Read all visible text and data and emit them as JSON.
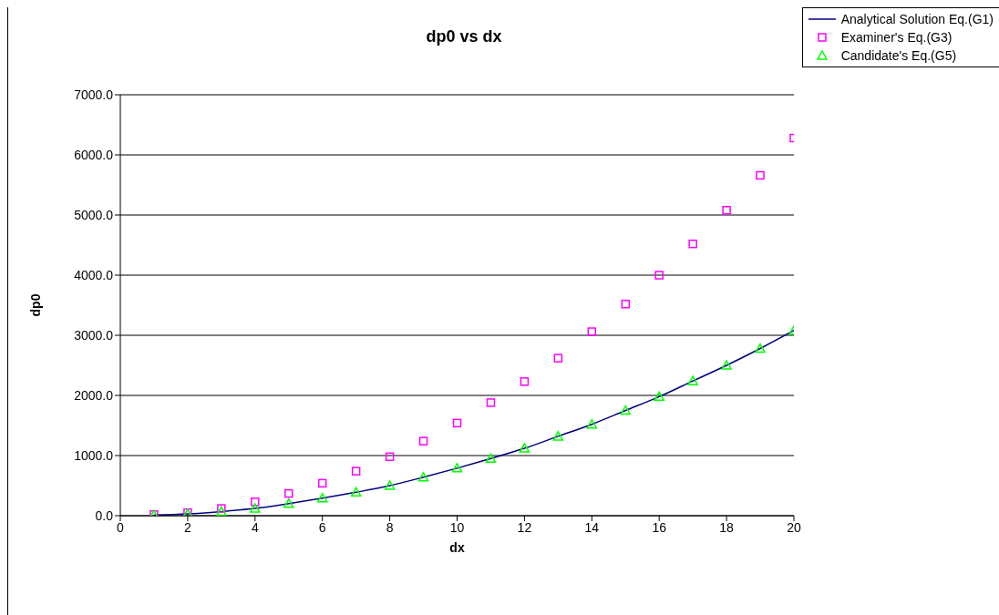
{
  "chart_data": {
    "type": "line",
    "title": "dp0 vs dx",
    "xlabel": "dx",
    "ylabel": "dp0",
    "xlim": [
      0,
      20
    ],
    "xticks": [
      0,
      2,
      4,
      6,
      8,
      10,
      12,
      14,
      16,
      18,
      20
    ],
    "ylim": [
      0,
      7000
    ],
    "yticks": [
      {
        "value": 0,
        "label": "0.0"
      },
      {
        "value": 1000,
        "label": "1000.0"
      },
      {
        "value": 2000,
        "label": "2000.0"
      },
      {
        "value": 3000,
        "label": "3000.0"
      },
      {
        "value": 4000,
        "label": "4000.0"
      },
      {
        "value": 5000,
        "label": "5000.0"
      },
      {
        "value": 6000,
        "label": "6000.0"
      },
      {
        "value": 7000,
        "label": "7000.0"
      }
    ],
    "grid": "y",
    "legend": "top right",
    "x": [
      1,
      2,
      3,
      4,
      5,
      6,
      7,
      8,
      9,
      10,
      11,
      12,
      13,
      14,
      15,
      16,
      17,
      18,
      19,
      20
    ],
    "series": [
      {
        "name": "Analytical Solution Eq.(G1)",
        "color": "#000080",
        "marker": "none",
        "line_style": "solid",
        "values": [
          10,
          30,
          70,
          120,
          200,
          290,
          390,
          500,
          640,
          790,
          950,
          1120,
          1320,
          1520,
          1750,
          1980,
          2240,
          2500,
          2780,
          3080
        ]
      },
      {
        "name": "Examiner's Eq.(G3)",
        "type": "scatter",
        "color": "#ff00ff",
        "marker": "square",
        "values": [
          20,
          50,
          120,
          230,
          370,
          540,
          740,
          980,
          1240,
          1540,
          1880,
          2230,
          2620,
          3060,
          3520,
          4000,
          4520,
          5080,
          5660,
          6280
        ]
      },
      {
        "name": "Candidate's Eq.(G5)",
        "type": "scatter",
        "color": "#00ff00",
        "marker": "triangle",
        "values": [
          10,
          30,
          70,
          120,
          200,
          290,
          390,
          500,
          640,
          790,
          950,
          1120,
          1320,
          1520,
          1750,
          1980,
          2240,
          2500,
          2780,
          3080
        ]
      }
    ]
  }
}
